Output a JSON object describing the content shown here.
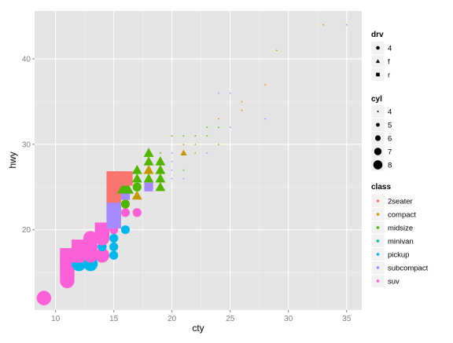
{
  "chart_data": {
    "type": "scatter",
    "xlabel": "cty",
    "ylabel": "hwy",
    "xlim": [
      8.2,
      36.3
    ],
    "ylim": [
      10.6,
      45.6
    ],
    "xticks": [
      10,
      15,
      20,
      25,
      30,
      35
    ],
    "yticks": [
      20,
      30,
      40
    ],
    "grid": true,
    "legend_position": "right",
    "legends": {
      "drv": {
        "title": "drv",
        "entries": [
          {
            "label": "4",
            "shape": "circle"
          },
          {
            "label": "f",
            "shape": "triangle"
          },
          {
            "label": "r",
            "shape": "square"
          }
        ]
      },
      "cyl": {
        "title": "cyl",
        "entries": [
          {
            "label": "4",
            "value": 4
          },
          {
            "label": "5",
            "value": 5
          },
          {
            "label": "6",
            "value": 6
          },
          {
            "label": "7",
            "value": 7
          },
          {
            "label": "8",
            "value": 8
          }
        ]
      },
      "class": {
        "title": "class",
        "entries": [
          {
            "label": "2seater",
            "color": "#F8766D"
          },
          {
            "label": "compact",
            "color": "#C49A00"
          },
          {
            "label": "midsize",
            "color": "#53B400"
          },
          {
            "label": "minivan",
            "color": "#00C094"
          },
          {
            "label": "pickup",
            "color": "#00B6EB"
          },
          {
            "label": "subcompact",
            "color": "#A58AFF"
          },
          {
            "label": "suv",
            "color": "#FB61D7"
          }
        ]
      }
    },
    "points": [
      {
        "x": 9,
        "y": 12,
        "drv": "4",
        "cyl": 8,
        "class": "suv"
      },
      {
        "x": 11,
        "y": 14,
        "drv": "4",
        "cyl": 8,
        "class": "suv"
      },
      {
        "x": 11,
        "y": 15,
        "drv": "r",
        "cyl": 8,
        "class": "suv"
      },
      {
        "x": 11,
        "y": 16,
        "drv": "r",
        "cyl": 8,
        "class": "suv"
      },
      {
        "x": 11,
        "y": 17,
        "drv": "r",
        "cyl": 8,
        "class": "suv"
      },
      {
        "x": 12,
        "y": 16,
        "drv": "4",
        "cyl": 8,
        "class": "pickup"
      },
      {
        "x": 12,
        "y": 17,
        "drv": "r",
        "cyl": 8,
        "class": "suv"
      },
      {
        "x": 12,
        "y": 18,
        "drv": "r",
        "cyl": 8,
        "class": "suv"
      },
      {
        "x": 13,
        "y": 16,
        "drv": "4",
        "cyl": 8,
        "class": "pickup"
      },
      {
        "x": 13,
        "y": 17,
        "drv": "4",
        "cyl": 8,
        "class": "suv"
      },
      {
        "x": 13,
        "y": 18,
        "drv": "4",
        "cyl": 8,
        "class": "suv"
      },
      {
        "x": 13,
        "y": 19,
        "drv": "4",
        "cyl": 8,
        "class": "suv"
      },
      {
        "x": 14,
        "y": 17,
        "drv": "4",
        "cyl": 8,
        "class": "suv"
      },
      {
        "x": 14,
        "y": 18,
        "drv": "4",
        "cyl": 6,
        "class": "pickup"
      },
      {
        "x": 14,
        "y": 19,
        "drv": "4",
        "cyl": 8,
        "class": "suv"
      },
      {
        "x": 14,
        "y": 20,
        "drv": "r",
        "cyl": 8,
        "class": "suv"
      },
      {
        "x": 15,
        "y": 17,
        "drv": "4",
        "cyl": 6,
        "class": "pickup"
      },
      {
        "x": 15,
        "y": 18,
        "drv": "4",
        "cyl": 6,
        "class": "pickup"
      },
      {
        "x": 15,
        "y": 19,
        "drv": "4",
        "cyl": 6,
        "class": "pickup"
      },
      {
        "x": 15,
        "y": 20,
        "drv": "4",
        "cyl": 6,
        "class": "suv"
      },
      {
        "x": 15,
        "y": 21,
        "drv": "r",
        "cyl": 8,
        "class": "subcompact"
      },
      {
        "x": 15,
        "y": 22,
        "drv": "r",
        "cyl": 8,
        "class": "subcompact"
      },
      {
        "x": 15,
        "y": 23,
        "drv": "r",
        "cyl": 8,
        "class": "subcompact"
      },
      {
        "x": 15,
        "y": 24,
        "drv": "r",
        "cyl": 8,
        "class": "2seater"
      },
      {
        "x": 15,
        "y": 25,
        "drv": "r",
        "cyl": 8,
        "class": "2seater"
      },
      {
        "x": 15,
        "y": 26,
        "drv": "r",
        "cyl": 8,
        "class": "2seater"
      },
      {
        "x": 16,
        "y": 20,
        "drv": "4",
        "cyl": 6,
        "class": "pickup"
      },
      {
        "x": 16,
        "y": 22,
        "drv": "4",
        "cyl": 6,
        "class": "suv"
      },
      {
        "x": 16,
        "y": 23,
        "drv": "4",
        "cyl": 6,
        "class": "midsize"
      },
      {
        "x": 16,
        "y": 24,
        "drv": "r",
        "cyl": 6,
        "class": "subcompact"
      },
      {
        "x": 16,
        "y": 25,
        "drv": "f",
        "cyl": 8,
        "class": "midsize"
      },
      {
        "x": 16,
        "y": 26,
        "drv": "f",
        "cyl": 6,
        "class": "midsize"
      },
      {
        "x": 16,
        "y": 26,
        "drv": "r",
        "cyl": 8,
        "class": "2seater"
      },
      {
        "x": 17,
        "y": 22,
        "drv": "4",
        "cyl": 6,
        "class": "suv"
      },
      {
        "x": 17,
        "y": 24,
        "drv": "f",
        "cyl": 6,
        "class": "compact"
      },
      {
        "x": 17,
        "y": 25,
        "drv": "4",
        "cyl": 6,
        "class": "midsize"
      },
      {
        "x": 17,
        "y": 26,
        "drv": "f",
        "cyl": 6,
        "class": "midsize"
      },
      {
        "x": 17,
        "y": 27,
        "drv": "f",
        "cyl": 6,
        "class": "midsize"
      },
      {
        "x": 18,
        "y": 25,
        "drv": "r",
        "cyl": 6,
        "class": "subcompact"
      },
      {
        "x": 18,
        "y": 26,
        "drv": "f",
        "cyl": 6,
        "class": "midsize"
      },
      {
        "x": 18,
        "y": 27,
        "drv": "f",
        "cyl": 6,
        "class": "compact"
      },
      {
        "x": 18,
        "y": 28,
        "drv": "f",
        "cyl": 6,
        "class": "midsize"
      },
      {
        "x": 18,
        "y": 29,
        "drv": "f",
        "cyl": 6,
        "class": "midsize"
      },
      {
        "x": 19,
        "y": 25,
        "drv": "f",
        "cyl": 6,
        "class": "midsize"
      },
      {
        "x": 19,
        "y": 26,
        "drv": "f",
        "cyl": 6,
        "class": "midsize"
      },
      {
        "x": 19,
        "y": 27,
        "drv": "f",
        "cyl": 6,
        "class": "midsize"
      },
      {
        "x": 19,
        "y": 28,
        "drv": "f",
        "cyl": 6,
        "class": "midsize"
      },
      {
        "x": 19,
        "y": 29,
        "drv": "f",
        "cyl": 4,
        "class": "midsize"
      },
      {
        "x": 20,
        "y": 26,
        "drv": "f",
        "cyl": 4,
        "class": "subcompact"
      },
      {
        "x": 20,
        "y": 27,
        "drv": "f",
        "cyl": 4,
        "class": "subcompact"
      },
      {
        "x": 20,
        "y": 28,
        "drv": "f",
        "cyl": 4,
        "class": "subcompact"
      },
      {
        "x": 20,
        "y": 29,
        "drv": "f",
        "cyl": 4,
        "class": "subcompact"
      },
      {
        "x": 20,
        "y": 31,
        "drv": "f",
        "cyl": 4,
        "class": "midsize"
      },
      {
        "x": 21,
        "y": 26,
        "drv": "f",
        "cyl": 4,
        "class": "subcompact"
      },
      {
        "x": 21,
        "y": 27,
        "drv": "f",
        "cyl": 4,
        "class": "midsize"
      },
      {
        "x": 21,
        "y": 29,
        "drv": "f",
        "cyl": 5,
        "class": "compact"
      },
      {
        "x": 21,
        "y": 30,
        "drv": "f",
        "cyl": 4,
        "class": "compact"
      },
      {
        "x": 21,
        "y": 31,
        "drv": "f",
        "cyl": 4,
        "class": "midsize"
      },
      {
        "x": 22,
        "y": 29,
        "drv": "f",
        "cyl": 4,
        "class": "compact"
      },
      {
        "x": 22,
        "y": 30,
        "drv": "f",
        "cyl": 4,
        "class": "compact"
      },
      {
        "x": 22,
        "y": 31,
        "drv": "f",
        "cyl": 4,
        "class": "midsize"
      },
      {
        "x": 23,
        "y": 29,
        "drv": "f",
        "cyl": 4,
        "class": "subcompact"
      },
      {
        "x": 23,
        "y": 31,
        "drv": "f",
        "cyl": 4,
        "class": "midsize"
      },
      {
        "x": 23,
        "y": 32,
        "drv": "f",
        "cyl": 4,
        "class": "midsize"
      },
      {
        "x": 24,
        "y": 30,
        "drv": "f",
        "cyl": 4,
        "class": "compact"
      },
      {
        "x": 24,
        "y": 32,
        "drv": "f",
        "cyl": 4,
        "class": "midsize"
      },
      {
        "x": 24,
        "y": 33,
        "drv": "f",
        "cyl": 4,
        "class": "compact"
      },
      {
        "x": 24,
        "y": 36,
        "drv": "f",
        "cyl": 4,
        "class": "subcompact"
      },
      {
        "x": 25,
        "y": 32,
        "drv": "f",
        "cyl": 4,
        "class": "subcompact"
      },
      {
        "x": 25,
        "y": 36,
        "drv": "f",
        "cyl": 4,
        "class": "subcompact"
      },
      {
        "x": 26,
        "y": 34,
        "drv": "f",
        "cyl": 4,
        "class": "compact"
      },
      {
        "x": 26,
        "y": 35,
        "drv": "f",
        "cyl": 4,
        "class": "compact"
      },
      {
        "x": 28,
        "y": 33,
        "drv": "f",
        "cyl": 4,
        "class": "subcompact"
      },
      {
        "x": 28,
        "y": 37,
        "drv": "f",
        "cyl": 4,
        "class": "compact"
      },
      {
        "x": 29,
        "y": 41,
        "drv": "f",
        "cyl": 4,
        "class": "compact"
      },
      {
        "x": 33,
        "y": 44,
        "drv": "f",
        "cyl": 4,
        "class": "compact"
      },
      {
        "x": 35,
        "y": 44,
        "drv": "f",
        "cyl": 4,
        "class": "subcompact"
      }
    ]
  }
}
